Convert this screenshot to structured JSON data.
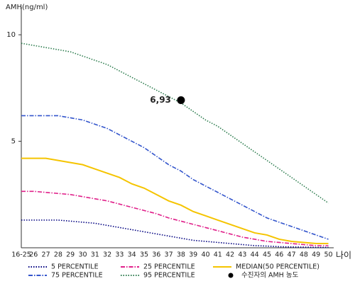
{
  "chart_data": {
    "type": "line",
    "y_label": "AMH(ng/ml)",
    "x_label": "나이",
    "categories": [
      "16-25",
      "26",
      "27",
      "28",
      "29",
      "30",
      "31",
      "32",
      "33",
      "34",
      "35",
      "36",
      "37",
      "38",
      "39",
      "40",
      "41",
      "42",
      "43",
      "44",
      "45",
      "46",
      "47",
      "48",
      "49",
      "50"
    ],
    "ylim": [
      0,
      11.3
    ],
    "yticks": [
      5,
      10
    ],
    "series": [
      {
        "name": "5 PERCENTILE",
        "color": "#000080",
        "style": "dotted",
        "values": [
          1.3,
          1.3,
          1.3,
          1.3,
          1.25,
          1.2,
          1.15,
          1.05,
          0.95,
          0.85,
          0.75,
          0.65,
          0.55,
          0.45,
          0.35,
          0.3,
          0.25,
          0.2,
          0.15,
          0.1,
          0.08,
          0.05,
          0.04,
          0.03,
          0.02,
          0.02
        ]
      },
      {
        "name": "25 PERCENTILE",
        "color": "#e0208a",
        "style": "dashdot",
        "values": [
          2.65,
          2.65,
          2.6,
          2.55,
          2.5,
          2.4,
          2.3,
          2.2,
          2.05,
          1.9,
          1.75,
          1.6,
          1.4,
          1.25,
          1.1,
          0.95,
          0.8,
          0.65,
          0.5,
          0.4,
          0.3,
          0.25,
          0.2,
          0.15,
          0.1,
          0.1
        ]
      },
      {
        "name": "MEDIAN(50 PERCENTILE)",
        "color": "#f5c400",
        "style": "solid",
        "values": [
          4.2,
          4.2,
          4.2,
          4.1,
          4.0,
          3.9,
          3.7,
          3.5,
          3.3,
          3.0,
          2.8,
          2.5,
          2.2,
          2.0,
          1.7,
          1.5,
          1.3,
          1.1,
          0.9,
          0.7,
          0.6,
          0.4,
          0.3,
          0.25,
          0.2,
          0.2
        ]
      },
      {
        "name": "75 PERCENTILE",
        "color": "#3355cc",
        "style": "dashdot",
        "values": [
          6.2,
          6.2,
          6.2,
          6.2,
          6.1,
          6.0,
          5.8,
          5.6,
          5.3,
          5.0,
          4.7,
          4.3,
          3.9,
          3.6,
          3.2,
          2.9,
          2.6,
          2.3,
          2.0,
          1.7,
          1.4,
          1.2,
          1.0,
          0.8,
          0.6,
          0.4
        ]
      },
      {
        "name": "95 PERCENTILE",
        "color": "#2e7d4f",
        "style": "dotted",
        "values": [
          9.6,
          9.5,
          9.4,
          9.3,
          9.2,
          9.0,
          8.8,
          8.6,
          8.3,
          8.0,
          7.7,
          7.4,
          7.1,
          6.8,
          6.4,
          6.0,
          5.7,
          5.3,
          4.9,
          4.5,
          4.1,
          3.7,
          3.3,
          2.9,
          2.5,
          2.1
        ]
      },
      {
        "name": "수진자의 AMH 농도",
        "color": "#000000",
        "style": "point",
        "values": [
          null,
          null,
          null,
          null,
          null,
          null,
          null,
          null,
          null,
          null,
          null,
          null,
          null,
          6.93,
          null,
          null,
          null,
          null,
          null,
          null,
          null,
          null,
          null,
          null,
          null,
          null
        ],
        "value_labels": [
          null,
          null,
          null,
          null,
          null,
          null,
          null,
          null,
          null,
          null,
          null,
          null,
          null,
          "6,93",
          null,
          null,
          null,
          null,
          null,
          null,
          null,
          null,
          null,
          null,
          null,
          null
        ]
      }
    ]
  }
}
